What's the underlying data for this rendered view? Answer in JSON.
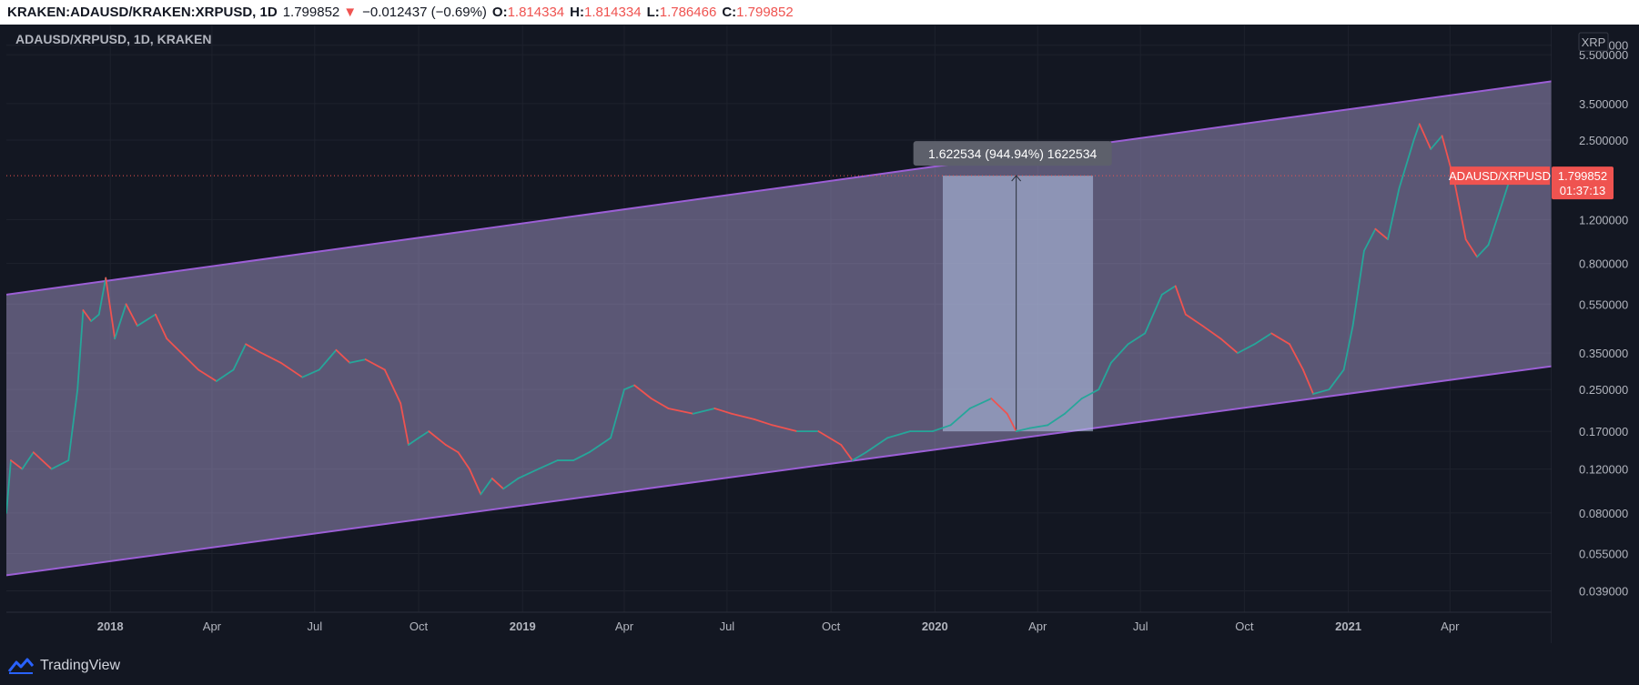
{
  "header": {
    "symbol": "KRAKEN:ADAUSD/KRAKEN:XRPUSD, 1D",
    "last": "1.799852",
    "arrow": "▼",
    "change": "−0.012437 (−0.69%)",
    "o_label": "O:",
    "o_value": "1.814334",
    "h_label": "H:",
    "h_value": "1.814334",
    "l_label": "L:",
    "l_value": "1.786466",
    "c_label": "C:",
    "c_value": "1.799852"
  },
  "footer": {
    "brand": "TradingView"
  },
  "chart_data": {
    "type": "line",
    "title": "ADAUSD/XRPUSD, 1D, KRAKEN",
    "scale": "log",
    "ylim": [
      0.032,
      7.2
    ],
    "xlim": [
      "2017-10-01",
      "2021-06-30"
    ],
    "y_ticks": [
      "6.000000",
      "5.500000",
      "3.500000",
      "2.500000",
      "1.200000",
      "0.800000",
      "0.550000",
      "0.350000",
      "0.250000",
      "0.170000",
      "0.120000",
      "0.080000",
      "0.055000",
      "0.039000"
    ],
    "x_ticks": [
      {
        "date": "2018-01-01",
        "label": "2018",
        "bold": true
      },
      {
        "date": "2018-04-01",
        "label": "Apr",
        "bold": false
      },
      {
        "date": "2018-07-01",
        "label": "Jul",
        "bold": false
      },
      {
        "date": "2018-10-01",
        "label": "Oct",
        "bold": false
      },
      {
        "date": "2019-01-01",
        "label": "2019",
        "bold": true
      },
      {
        "date": "2019-04-01",
        "label": "Apr",
        "bold": false
      },
      {
        "date": "2019-07-01",
        "label": "Jul",
        "bold": false
      },
      {
        "date": "2019-10-01",
        "label": "Oct",
        "bold": false
      },
      {
        "date": "2020-01-01",
        "label": "2020",
        "bold": true
      },
      {
        "date": "2020-04-01",
        "label": "Apr",
        "bold": false
      },
      {
        "date": "2020-07-01",
        "label": "Jul",
        "bold": false
      },
      {
        "date": "2020-10-01",
        "label": "Oct",
        "bold": false
      },
      {
        "date": "2021-01-01",
        "label": "2021",
        "bold": true
      },
      {
        "date": "2021-04-01",
        "label": "Apr",
        "bold": false
      }
    ],
    "series": [
      {
        "points": [
          [
            "2017-10-01",
            0.08
          ],
          [
            "2017-10-05",
            0.13
          ],
          [
            "2017-10-15",
            0.12
          ],
          [
            "2017-10-25",
            0.14
          ],
          [
            "2017-11-10",
            0.12
          ],
          [
            "2017-11-25",
            0.13
          ],
          [
            "2017-12-03",
            0.25
          ],
          [
            "2017-12-08",
            0.52
          ],
          [
            "2017-12-15",
            0.47
          ],
          [
            "2017-12-22",
            0.5
          ],
          [
            "2017-12-28",
            0.7
          ],
          [
            "2018-01-05",
            0.4
          ],
          [
            "2018-01-15",
            0.55
          ],
          [
            "2018-01-25",
            0.45
          ],
          [
            "2018-02-10",
            0.5
          ],
          [
            "2018-02-20",
            0.4
          ],
          [
            "2018-03-05",
            0.35
          ],
          [
            "2018-03-20",
            0.3
          ],
          [
            "2018-04-05",
            0.27
          ],
          [
            "2018-04-20",
            0.3
          ],
          [
            "2018-05-01",
            0.38
          ],
          [
            "2018-05-15",
            0.35
          ],
          [
            "2018-06-01",
            0.32
          ],
          [
            "2018-06-20",
            0.28
          ],
          [
            "2018-07-05",
            0.3
          ],
          [
            "2018-07-20",
            0.36
          ],
          [
            "2018-08-01",
            0.32
          ],
          [
            "2018-08-15",
            0.33
          ],
          [
            "2018-09-01",
            0.3
          ],
          [
            "2018-09-15",
            0.22
          ],
          [
            "2018-09-22",
            0.15
          ],
          [
            "2018-10-01",
            0.16
          ],
          [
            "2018-10-10",
            0.17
          ],
          [
            "2018-10-25",
            0.15
          ],
          [
            "2018-11-05",
            0.14
          ],
          [
            "2018-11-15",
            0.12
          ],
          [
            "2018-11-25",
            0.095
          ],
          [
            "2018-12-05",
            0.11
          ],
          [
            "2018-12-15",
            0.1
          ],
          [
            "2018-12-28",
            0.11
          ],
          [
            "2019-01-15",
            0.12
          ],
          [
            "2019-02-01",
            0.13
          ],
          [
            "2019-02-15",
            0.13
          ],
          [
            "2019-03-01",
            0.14
          ],
          [
            "2019-03-20",
            0.16
          ],
          [
            "2019-04-01",
            0.25
          ],
          [
            "2019-04-10",
            0.26
          ],
          [
            "2019-04-25",
            0.23
          ],
          [
            "2019-05-10",
            0.21
          ],
          [
            "2019-06-01",
            0.2
          ],
          [
            "2019-06-20",
            0.21
          ],
          [
            "2019-07-05",
            0.2
          ],
          [
            "2019-07-25",
            0.19
          ],
          [
            "2019-08-10",
            0.18
          ],
          [
            "2019-09-01",
            0.17
          ],
          [
            "2019-09-20",
            0.17
          ],
          [
            "2019-10-10",
            0.15
          ],
          [
            "2019-10-20",
            0.13
          ],
          [
            "2019-11-01",
            0.14
          ],
          [
            "2019-11-20",
            0.16
          ],
          [
            "2019-12-10",
            0.17
          ],
          [
            "2019-12-30",
            0.17
          ],
          [
            "2020-01-15",
            0.18
          ],
          [
            "2020-02-01",
            0.21
          ],
          [
            "2020-02-20",
            0.23
          ],
          [
            "2020-03-05",
            0.2
          ],
          [
            "2020-03-13",
            0.17
          ],
          [
            "2020-03-25",
            0.175
          ],
          [
            "2020-04-10",
            0.18
          ],
          [
            "2020-04-25",
            0.2
          ],
          [
            "2020-05-10",
            0.23
          ],
          [
            "2020-05-25",
            0.25
          ],
          [
            "2020-06-05",
            0.32
          ],
          [
            "2020-06-20",
            0.38
          ],
          [
            "2020-07-05",
            0.42
          ],
          [
            "2020-07-20",
            0.6
          ],
          [
            "2020-08-01",
            0.65
          ],
          [
            "2020-08-10",
            0.5
          ],
          [
            "2020-08-25",
            0.45
          ],
          [
            "2020-09-10",
            0.4
          ],
          [
            "2020-09-25",
            0.35
          ],
          [
            "2020-10-10",
            0.38
          ],
          [
            "2020-10-25",
            0.42
          ],
          [
            "2020-11-10",
            0.38
          ],
          [
            "2020-11-22",
            0.3
          ],
          [
            "2020-12-01",
            0.24
          ],
          [
            "2020-12-15",
            0.25
          ],
          [
            "2020-12-28",
            0.3
          ],
          [
            "2021-01-05",
            0.45
          ],
          [
            "2021-01-15",
            0.9
          ],
          [
            "2021-01-25",
            1.1
          ],
          [
            "2021-02-05",
            1.0
          ],
          [
            "2021-02-15",
            1.6
          ],
          [
            "2021-02-28",
            2.5
          ],
          [
            "2021-03-05",
            2.9
          ],
          [
            "2021-03-15",
            2.3
          ],
          [
            "2021-03-25",
            2.6
          ],
          [
            "2021-04-05",
            1.7
          ],
          [
            "2021-04-15",
            1.0
          ],
          [
            "2021-04-25",
            0.85
          ],
          [
            "2021-05-05",
            0.95
          ],
          [
            "2021-05-15",
            1.3
          ],
          [
            "2021-05-25",
            1.8
          ],
          [
            "2021-05-31",
            1.8
          ]
        ]
      }
    ],
    "channel": {
      "upper": [
        [
          "2017-10-01",
          0.6
        ],
        [
          "2021-06-30",
          4.3
        ]
      ],
      "lower": [
        [
          "2017-10-01",
          0.045
        ],
        [
          "2021-06-30",
          0.31
        ]
      ]
    },
    "measure": {
      "from_date": "2020-01-08",
      "to_date": "2020-05-20",
      "low": 0.17,
      "high": 1.8,
      "anchor_date": "2020-03-13",
      "label": "1.622534 (944.94%) 1622534"
    },
    "last_price": {
      "value": 1.799852,
      "name": "ADAUSD/XRPUSD",
      "value_label": "1.799852",
      "countdown": "01:37:13"
    },
    "currency": "XRP",
    "colors": {
      "up": "#26a69a",
      "down": "#ef5350",
      "channel": "#9c5fd6",
      "channel_fill": "#b3a7dc",
      "measure": "#b6c6ea",
      "last_price": "#ef5350"
    }
  }
}
